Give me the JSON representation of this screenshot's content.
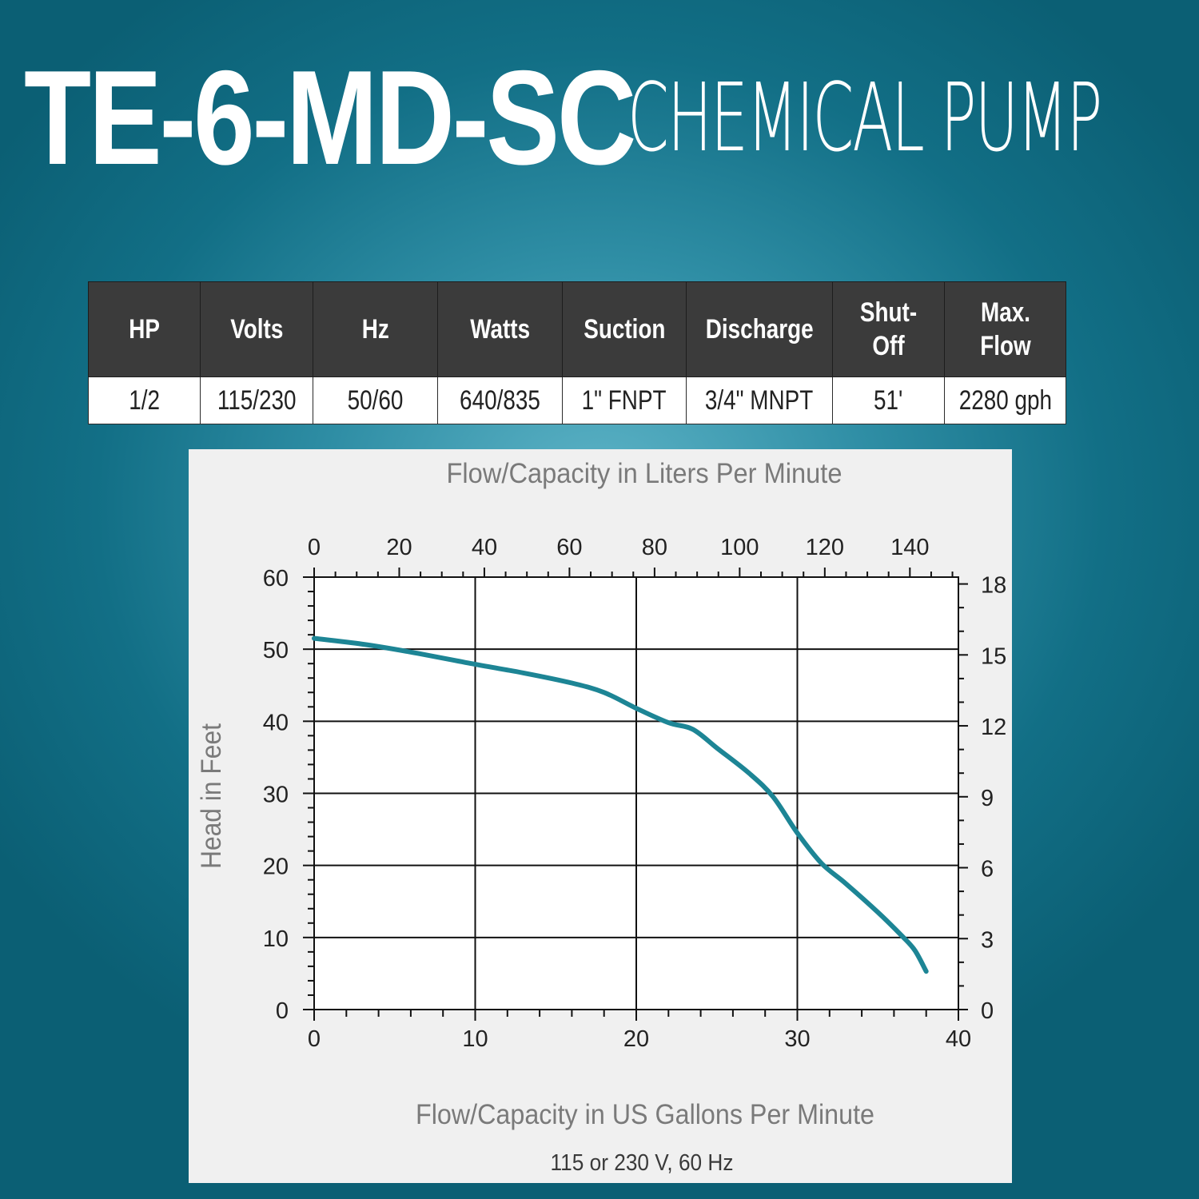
{
  "header": {
    "model": "TE-6-MD-SC",
    "subtitle": "CHEMICAL PUMP"
  },
  "specs": {
    "headers": [
      "HP",
      "Volts",
      "Hz",
      "Watts",
      "Suction",
      "Discharge",
      "Shut-Off",
      "Max. Flow"
    ],
    "values": [
      "1/2",
      "115/230",
      "50/60",
      "640/835",
      "1\" FNPT",
      "3/4\" MNPT",
      "51'",
      "2280 gph"
    ]
  },
  "colors": {
    "curve": "#1d8595",
    "header_bg": "#3b3b3b",
    "axis_text": "#7a7a7a"
  },
  "chart_data": {
    "type": "line",
    "title": "",
    "xlabel": "Flow/Capacity in US Gallons Per Minute",
    "ylabel": "Head in Feet",
    "x2label": "Flow/Capacity in Liters Per Minute",
    "note": "115 or 230 V, 60 Hz",
    "xlim": [
      0,
      40
    ],
    "ylim": [
      0,
      60
    ],
    "xticks": [
      0,
      10,
      20,
      30,
      40
    ],
    "yticks": [
      0,
      10,
      20,
      30,
      40,
      50,
      60
    ],
    "x2lim": [
      0,
      151.4
    ],
    "x2ticks": [
      0,
      20,
      40,
      60,
      80,
      100,
      120,
      140
    ],
    "y2lim": [
      0,
      18.29
    ],
    "y2ticks": [
      0,
      3,
      6,
      9,
      12,
      15,
      18
    ],
    "grid": true,
    "series": [
      {
        "x": [
          0,
          3,
          6,
          10,
          13,
          16,
          18,
          20,
          22,
          23.5,
          25,
          27,
          28.5,
          30,
          31.5,
          33,
          35,
          36.5,
          37.3,
          38
        ],
        "y": [
          51.5,
          50.7,
          49.6,
          47.9,
          46.7,
          45.3,
          44,
          41.8,
          39.8,
          38.9,
          36.3,
          32.8,
          29.5,
          24.5,
          20.3,
          17.5,
          13.5,
          10.2,
          8.2,
          5.3
        ]
      }
    ]
  }
}
